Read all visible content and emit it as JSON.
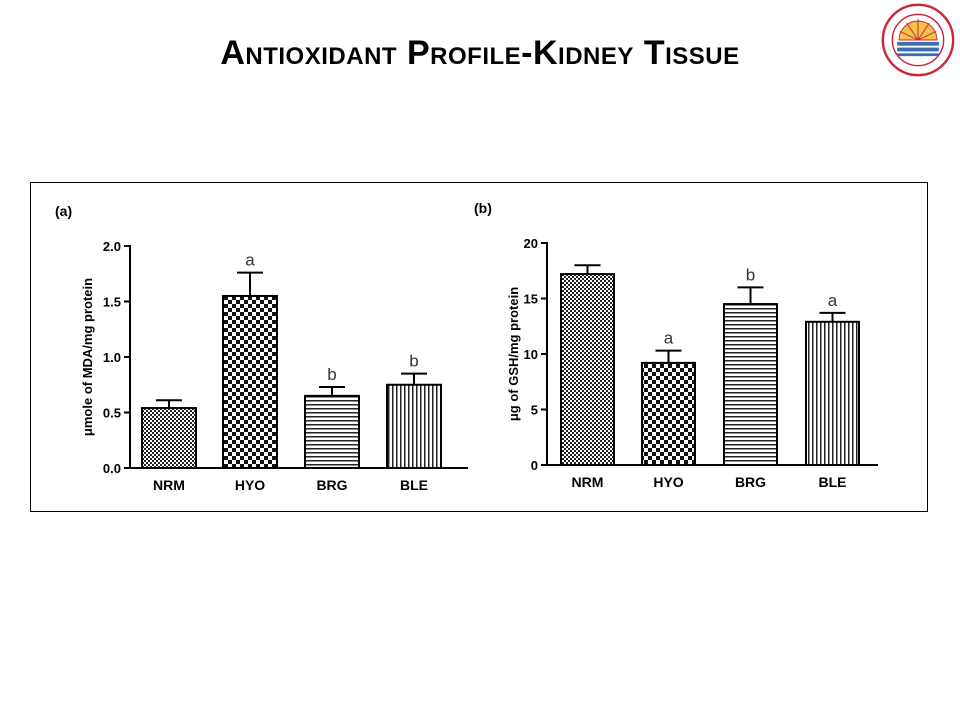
{
  "slide": {
    "title": "Antioxidant Profile-Kidney Tissue",
    "logo_icon": "university-seal-icon",
    "logo_text": "पंजाब यूनिवर्सिटी · PANJAB UNIVERSITY · 1947"
  },
  "chart_data": [
    {
      "type": "bar",
      "panel_label": "(a)",
      "categories": [
        "NRM",
        "HYO",
        "BRG",
        "BLE"
      ],
      "values": [
        0.54,
        1.55,
        0.65,
        0.75
      ],
      "errors": [
        0.07,
        0.21,
        0.08,
        0.1
      ],
      "annotations": [
        "",
        "a",
        "b",
        "b"
      ],
      "patterns": [
        "fine-checker",
        "large-checker",
        "horizontal-lines",
        "vertical-lines"
      ],
      "ylabel": "μmole of MDA/mg protein",
      "xlabel": "",
      "ylim": [
        0,
        2.0
      ],
      "yticks": [
        0.0,
        0.5,
        1.0,
        1.5,
        2.0
      ],
      "ytick_labels": [
        "0.0",
        "0.5",
        "1.0",
        "1.5",
        "2.0"
      ],
      "grid": false
    },
    {
      "type": "bar",
      "panel_label": "(b)",
      "categories": [
        "NRM",
        "HYO",
        "BRG",
        "BLE"
      ],
      "values": [
        17.2,
        9.2,
        14.5,
        12.9
      ],
      "errors": [
        0.8,
        1.1,
        1.5,
        0.8
      ],
      "annotations": [
        "",
        "a",
        "b",
        "a"
      ],
      "patterns": [
        "fine-checker",
        "large-checker",
        "horizontal-lines",
        "vertical-lines"
      ],
      "ylabel": "μg of GSH/mg protein",
      "xlabel": "",
      "ylim": [
        0,
        20
      ],
      "yticks": [
        0,
        5,
        10,
        15,
        20
      ],
      "ytick_labels": [
        "0",
        "5",
        "10",
        "15",
        "20"
      ],
      "grid": false
    }
  ]
}
